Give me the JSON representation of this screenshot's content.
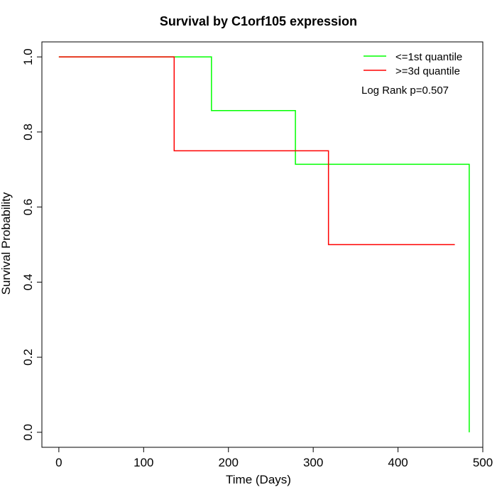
{
  "chart_data": {
    "type": "line",
    "title": "Survival by C1orf105 expression",
    "xlabel": "Time (Days)",
    "ylabel": "Survival Probability",
    "xlim": [
      -20,
      500
    ],
    "ylim": [
      -0.04,
      1.04
    ],
    "x_ticks": [
      0,
      100,
      200,
      300,
      400,
      500
    ],
    "y_ticks": [
      0.0,
      0.2,
      0.4,
      0.6,
      0.8,
      1.0
    ],
    "x_tick_labels": [
      "0",
      "100",
      "200",
      "300",
      "400",
      "500"
    ],
    "y_tick_labels": [
      "0.0",
      "0.2",
      "0.4",
      "0.6",
      "0.8",
      "1.0"
    ],
    "grid": false,
    "legend_position": "top-right",
    "annotation": "Log Rank p=0.507",
    "series": [
      {
        "name": "<=1st quantile",
        "color": "#00ff00",
        "steps": [
          [
            0,
            1.0
          ],
          [
            180,
            0.857
          ],
          [
            279,
            0.714
          ],
          [
            484,
            0.0
          ]
        ]
      },
      {
        "name": ">=3d quantile",
        "color": "#ff0000",
        "steps": [
          [
            0,
            1.0
          ],
          [
            136,
            0.75
          ],
          [
            318,
            0.5
          ]
        ],
        "end_x": 467
      }
    ]
  }
}
